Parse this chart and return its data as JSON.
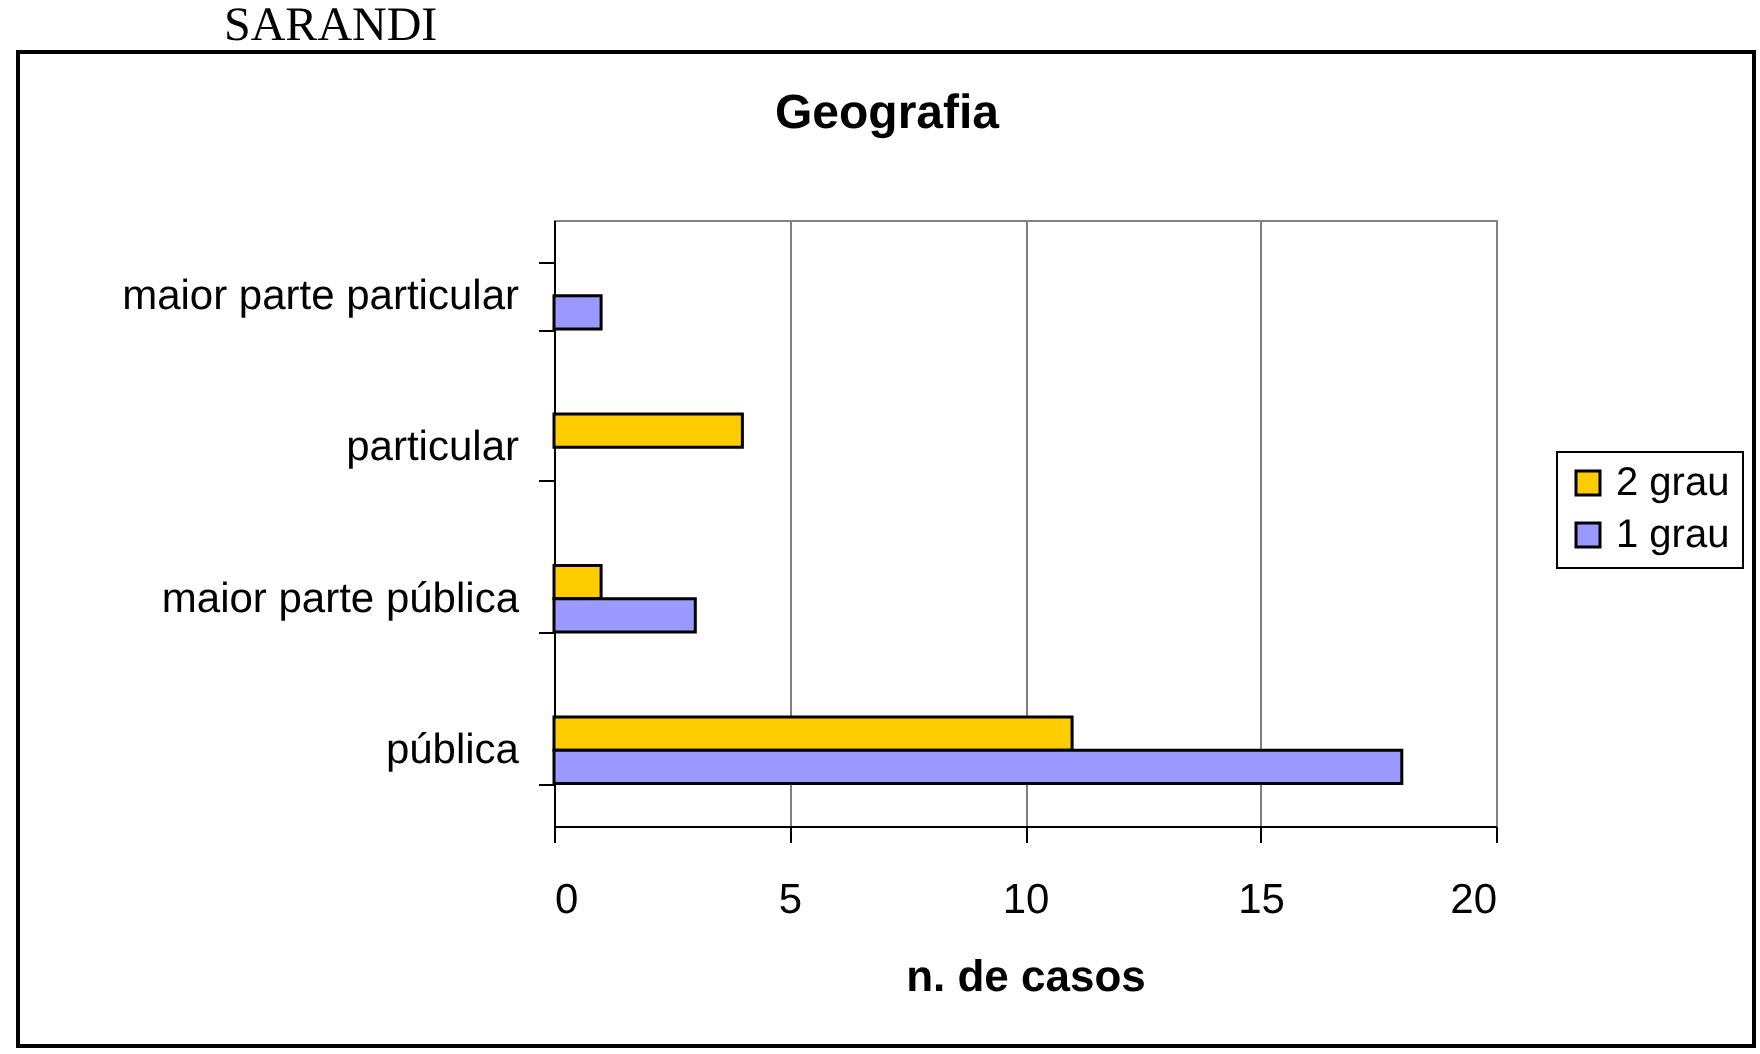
{
  "chart_data": {
    "type": "bar",
    "orientation": "horizontal",
    "title": "Geografia",
    "xlabel": "n. de casos",
    "categories": [
      "maior parte particular",
      "particular",
      "maior parte pública",
      "pública"
    ],
    "series": [
      {
        "name": "2 grau",
        "color": "#ffcc00",
        "values": [
          null,
          4,
          1,
          11
        ]
      },
      {
        "name": "1 grau",
        "color": "#9999ff",
        "values": [
          1,
          null,
          3,
          18
        ]
      }
    ],
    "xlim": [
      0,
      20
    ],
    "xticks": [
      0,
      5,
      10,
      15,
      20
    ],
    "grid": "x",
    "legend": "right",
    "annotations": [
      "SARANDI"
    ]
  }
}
